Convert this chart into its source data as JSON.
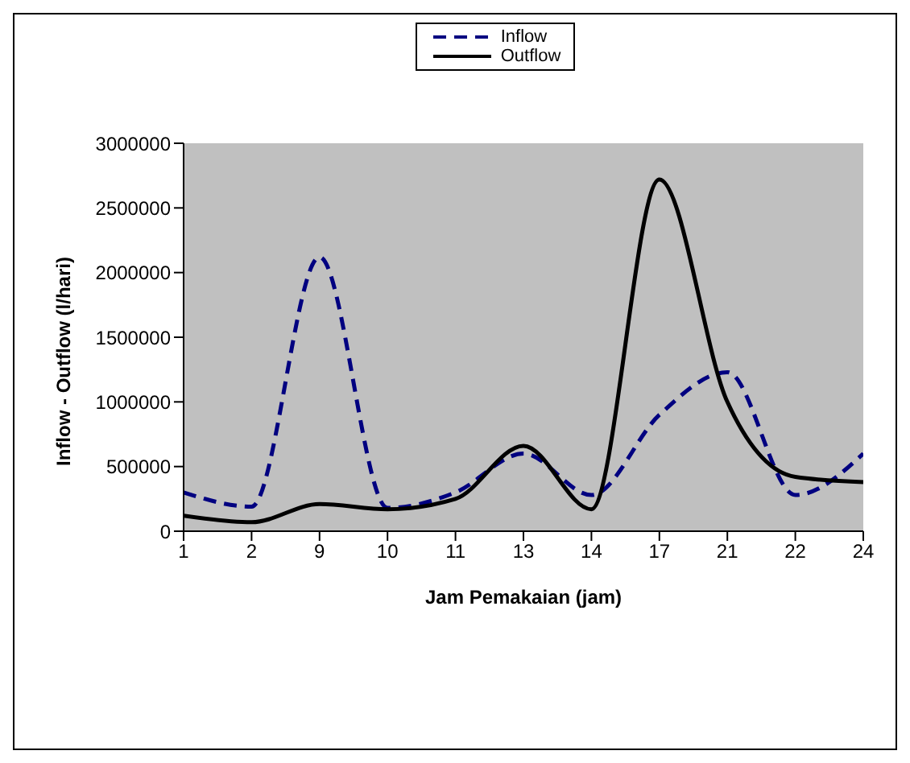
{
  "chart_data": {
    "type": "line",
    "xlabel": "Jam Pemakaian (jam)",
    "ylabel": "Inflow - Outflow  (l/hari)",
    "categories": [
      "1",
      "2",
      "9",
      "10",
      "11",
      "13",
      "14",
      "17",
      "21",
      "22",
      "24"
    ],
    "series": [
      {
        "name": "Inflow",
        "color": "#000080",
        "line_style": "dashed",
        "values": [
          300000,
          190000,
          2120000,
          180000,
          300000,
          600000,
          280000,
          900000,
          1230000,
          280000,
          600000
        ]
      },
      {
        "name": "Outflow",
        "color": "#000000",
        "line_style": "solid",
        "values": [
          120000,
          70000,
          210000,
          170000,
          250000,
          660000,
          170000,
          2720000,
          1000000,
          420000,
          380000
        ]
      }
    ],
    "ylim": [
      0,
      3000000
    ],
    "yticks": [
      0,
      500000,
      1000000,
      1500000,
      2000000,
      2500000,
      3000000
    ],
    "legend": "top",
    "marker": "none"
  }
}
